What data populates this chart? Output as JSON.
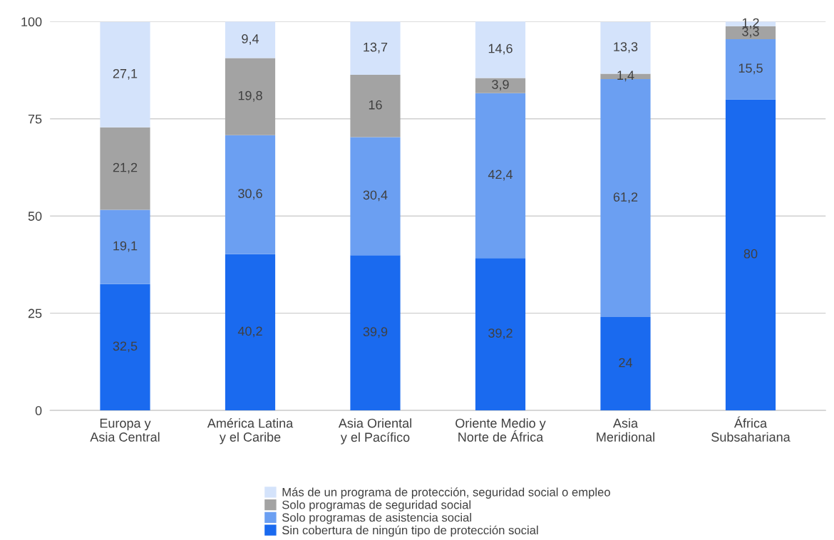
{
  "chart_data": {
    "type": "bar",
    "stacked": true,
    "categories": [
      "Europa y\nAsia Central",
      "América Latina\ny el Caribe",
      "Asia Oriental\ny el Pacífico",
      "Oriente Medio y\nNorte de África",
      "Asia\nMeridional",
      "África\nSubsahariana"
    ],
    "series": [
      {
        "name": "Sin cobertura de ningún tipo de protección social",
        "color": "#1a6aef",
        "values": [
          32.5,
          40.2,
          39.9,
          39.2,
          24,
          80
        ],
        "value_labels": [
          "32,5",
          "40,2",
          "39,9",
          "39,2",
          "24",
          "80"
        ]
      },
      {
        "name": "Solo programas de asistencia social",
        "color": "#6b9ff2",
        "values": [
          19.1,
          30.6,
          30.4,
          42.4,
          61.2,
          15.5
        ],
        "value_labels": [
          "19,1",
          "30,6",
          "30,4",
          "42,4",
          "61,2",
          "15,5"
        ]
      },
      {
        "name": "Solo programas de seguridad social",
        "color": "#a3a3a3",
        "values": [
          21.2,
          19.8,
          16,
          3.9,
          1.4,
          3.3
        ],
        "value_labels": [
          "21,2",
          "19,8",
          "16",
          "3,9",
          "1,4",
          "3,3"
        ]
      },
      {
        "name": "Más de un programa de protección, seguridad social o empleo",
        "color": "#d4e3fb",
        "values": [
          27.1,
          9.4,
          13.7,
          14.6,
          13.3,
          1.2
        ],
        "value_labels": [
          "27,1",
          "9,4",
          "13,7",
          "14,6",
          "13,3",
          "1,2"
        ]
      }
    ],
    "ylim": [
      0,
      100
    ],
    "yticks": [
      0,
      25,
      50,
      75,
      100
    ],
    "grid": "y",
    "legend": "bottom"
  }
}
